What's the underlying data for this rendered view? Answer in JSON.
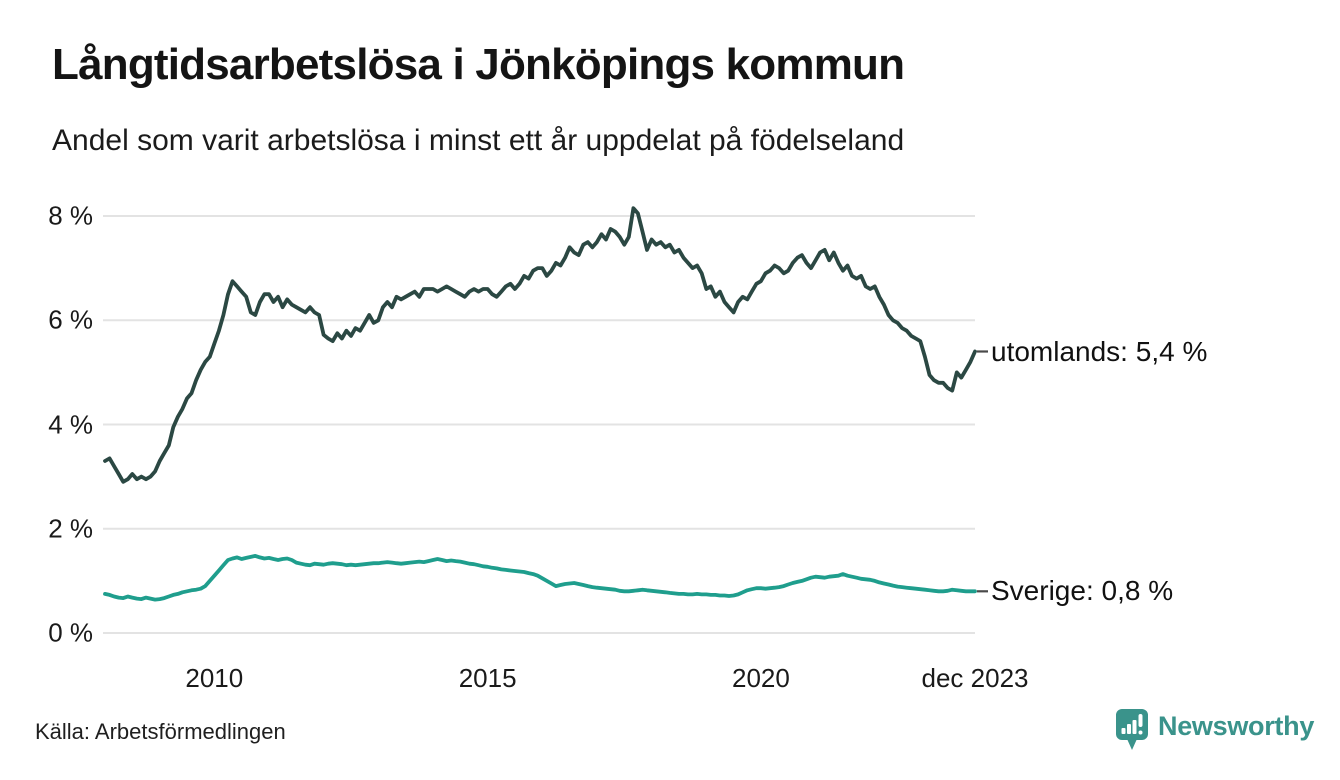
{
  "header": {
    "title": "Långtidsarbetslösa i Jönköpings kommun",
    "subtitle": "Andel som varit arbetslösa i minst ett år uppdelat på födelseland"
  },
  "footer": {
    "source": "Källa: Arbetsförmedlingen",
    "brand": "Newsworthy"
  },
  "colors": {
    "utomlands_line": "#2b4843",
    "sverige_line": "#1f9e8d",
    "grid": "#e3e3e3",
    "text": "#1a1a1a",
    "connector": "#4a4a4a",
    "brand_teal": "#3a938b"
  },
  "chart_data": {
    "type": "line",
    "title": "Långtidsarbetslösa i Jönköpings kommun",
    "subtitle": "Andel som varit arbetslösa i minst ett år uppdelat på födelseland",
    "unit": "%",
    "grid": true,
    "legend_position": "end-of-line-labels-right",
    "x_start": 2008.0,
    "x_step_years": 0.0833333,
    "x_axis": {
      "ticks": [
        {
          "label": "2010",
          "year": 2010
        },
        {
          "label": "2015",
          "year": 2015
        },
        {
          "label": "2020",
          "year": 2020
        },
        {
          "label": "dec 2023",
          "year": 2023.9167
        }
      ],
      "range": [
        2008.0,
        2023.9167
      ]
    },
    "y_axis": {
      "range": [
        0,
        8
      ],
      "ticks": [
        {
          "label": "0 %",
          "value": 0
        },
        {
          "label": "2 %",
          "value": 2
        },
        {
          "label": "4 %",
          "value": 4
        },
        {
          "label": "6 %",
          "value": 6
        },
        {
          "label": "8 %",
          "value": 8
        }
      ]
    },
    "series": [
      {
        "name": "utomlands",
        "end_label": "utomlands: 5,4 %",
        "last_value": 5.4,
        "color": "#2b4843",
        "values": [
          3.3,
          3.35,
          3.2,
          3.05,
          2.9,
          2.95,
          3.05,
          2.95,
          3.0,
          2.95,
          3.0,
          3.1,
          3.3,
          3.45,
          3.6,
          3.95,
          4.15,
          4.3,
          4.5,
          4.6,
          4.85,
          5.05,
          5.2,
          5.3,
          5.55,
          5.8,
          6.1,
          6.5,
          6.75,
          6.65,
          6.55,
          6.45,
          6.15,
          6.1,
          6.35,
          6.5,
          6.5,
          6.35,
          6.45,
          6.25,
          6.4,
          6.3,
          6.25,
          6.2,
          6.15,
          6.25,
          6.15,
          6.1,
          5.72,
          5.65,
          5.6,
          5.75,
          5.65,
          5.8,
          5.7,
          5.85,
          5.8,
          5.95,
          6.1,
          5.95,
          6.0,
          6.25,
          6.35,
          6.25,
          6.45,
          6.4,
          6.45,
          6.5,
          6.55,
          6.45,
          6.6,
          6.6,
          6.6,
          6.55,
          6.6,
          6.65,
          6.6,
          6.55,
          6.5,
          6.45,
          6.55,
          6.6,
          6.55,
          6.6,
          6.6,
          6.5,
          6.45,
          6.55,
          6.65,
          6.7,
          6.6,
          6.7,
          6.85,
          6.8,
          6.95,
          7.0,
          7.0,
          6.85,
          6.95,
          7.1,
          7.05,
          7.2,
          7.4,
          7.3,
          7.25,
          7.45,
          7.5,
          7.4,
          7.5,
          7.65,
          7.55,
          7.75,
          7.7,
          7.6,
          7.45,
          7.6,
          8.15,
          8.05,
          7.7,
          7.35,
          7.55,
          7.45,
          7.5,
          7.4,
          7.45,
          7.3,
          7.35,
          7.2,
          7.1,
          7.0,
          7.05,
          6.9,
          6.6,
          6.65,
          6.45,
          6.55,
          6.35,
          6.25,
          6.15,
          6.35,
          6.45,
          6.4,
          6.55,
          6.7,
          6.75,
          6.9,
          6.95,
          7.05,
          7.0,
          6.9,
          6.95,
          7.1,
          7.2,
          7.25,
          7.1,
          7.0,
          7.15,
          7.3,
          7.35,
          7.15,
          7.3,
          7.1,
          6.95,
          7.05,
          6.85,
          6.8,
          6.85,
          6.65,
          6.6,
          6.65,
          6.45,
          6.3,
          6.1,
          6.0,
          5.95,
          5.85,
          5.8,
          5.7,
          5.65,
          5.6,
          5.3,
          4.95,
          4.85,
          4.8,
          4.8,
          4.7,
          4.65,
          5.0,
          4.9,
          5.05,
          5.2,
          5.4
        ]
      },
      {
        "name": "Sverige",
        "end_label": "Sverige: 0,8 %",
        "last_value": 0.8,
        "color": "#1f9e8d",
        "values": [
          0.75,
          0.73,
          0.7,
          0.68,
          0.67,
          0.7,
          0.68,
          0.66,
          0.65,
          0.68,
          0.66,
          0.64,
          0.65,
          0.67,
          0.7,
          0.73,
          0.75,
          0.78,
          0.8,
          0.82,
          0.83,
          0.85,
          0.9,
          1.0,
          1.1,
          1.2,
          1.3,
          1.4,
          1.43,
          1.45,
          1.42,
          1.44,
          1.46,
          1.48,
          1.45,
          1.43,
          1.44,
          1.42,
          1.4,
          1.42,
          1.43,
          1.4,
          1.35,
          1.33,
          1.31,
          1.3,
          1.33,
          1.32,
          1.31,
          1.33,
          1.34,
          1.33,
          1.32,
          1.3,
          1.31,
          1.3,
          1.31,
          1.32,
          1.33,
          1.34,
          1.34,
          1.35,
          1.36,
          1.35,
          1.34,
          1.33,
          1.34,
          1.35,
          1.36,
          1.37,
          1.36,
          1.38,
          1.4,
          1.42,
          1.4,
          1.38,
          1.39,
          1.38,
          1.37,
          1.35,
          1.33,
          1.32,
          1.3,
          1.28,
          1.27,
          1.25,
          1.24,
          1.22,
          1.21,
          1.2,
          1.19,
          1.18,
          1.17,
          1.15,
          1.13,
          1.1,
          1.05,
          1.0,
          0.95,
          0.9,
          0.92,
          0.94,
          0.95,
          0.96,
          0.94,
          0.92,
          0.9,
          0.88,
          0.87,
          0.86,
          0.85,
          0.84,
          0.83,
          0.81,
          0.8,
          0.8,
          0.81,
          0.82,
          0.83,
          0.82,
          0.81,
          0.8,
          0.79,
          0.78,
          0.77,
          0.76,
          0.75,
          0.75,
          0.74,
          0.74,
          0.75,
          0.74,
          0.74,
          0.73,
          0.73,
          0.72,
          0.72,
          0.71,
          0.72,
          0.74,
          0.78,
          0.82,
          0.84,
          0.86,
          0.86,
          0.85,
          0.86,
          0.87,
          0.88,
          0.9,
          0.93,
          0.96,
          0.98,
          1.0,
          1.03,
          1.06,
          1.08,
          1.07,
          1.06,
          1.08,
          1.09,
          1.1,
          1.13,
          1.1,
          1.08,
          1.06,
          1.04,
          1.03,
          1.02,
          1.0,
          0.97,
          0.95,
          0.93,
          0.91,
          0.89,
          0.88,
          0.87,
          0.86,
          0.85,
          0.84,
          0.83,
          0.82,
          0.81,
          0.8,
          0.8,
          0.81,
          0.83,
          0.82,
          0.81,
          0.8,
          0.8,
          0.8
        ]
      }
    ]
  }
}
